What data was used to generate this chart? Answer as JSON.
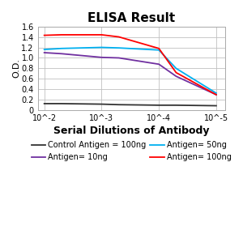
{
  "title": "ELISA Result",
  "ylabel": "O.D.",
  "xlabel": "Serial Dilutions of Antibody",
  "x_ticks_positions": [
    0.01,
    0.001,
    0.0001,
    1e-05
  ],
  "x_ticks_labels": [
    "10^-2",
    "10^-3",
    "10^-4",
    "10^-5"
  ],
  "xlim_left": 0.013,
  "xlim_right": 7e-06,
  "ylim": [
    0,
    1.6
  ],
  "yticks": [
    0,
    0.2,
    0.4,
    0.6,
    0.8,
    1.0,
    1.2,
    1.4,
    1.6
  ],
  "lines": [
    {
      "label": "Control Antigen = 100ng",
      "color": "#333333",
      "x": [
        0.01,
        0.005,
        0.001,
        0.0005,
        0.0001,
        5e-05,
        1e-05
      ],
      "y": [
        0.13,
        0.13,
        0.12,
        0.11,
        0.1,
        0.1,
        0.09
      ]
    },
    {
      "label": "Antigen= 10ng",
      "color": "#7030a0",
      "x": [
        0.01,
        0.005,
        0.001,
        0.0005,
        0.0001,
        5e-05,
        1e-05
      ],
      "y": [
        1.1,
        1.08,
        1.01,
        1.0,
        0.88,
        0.65,
        0.3
      ]
    },
    {
      "label": "Antigen= 50ng",
      "color": "#00b0f0",
      "x": [
        0.01,
        0.005,
        0.001,
        0.0005,
        0.0001,
        5e-05,
        1e-05
      ],
      "y": [
        1.16,
        1.18,
        1.2,
        1.19,
        1.15,
        0.8,
        0.33
      ]
    },
    {
      "label": "Antigen= 100ng",
      "color": "#ff0000",
      "x": [
        0.01,
        0.005,
        0.001,
        0.0005,
        0.0001,
        5e-05,
        1e-05
      ],
      "y": [
        1.43,
        1.44,
        1.44,
        1.4,
        1.18,
        0.72,
        0.3
      ]
    }
  ],
  "background_color": "#ffffff",
  "grid_color": "#c0c0c0",
  "title_fontsize": 11,
  "axis_label_fontsize": 8,
  "tick_fontsize": 7,
  "legend_fontsize": 7
}
